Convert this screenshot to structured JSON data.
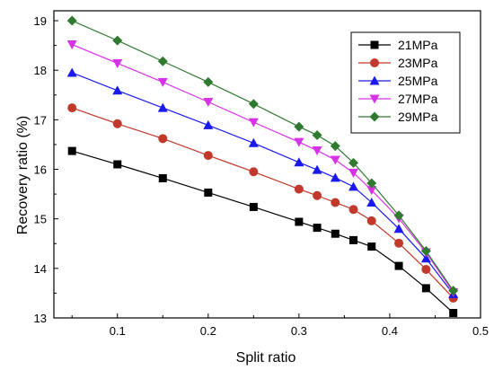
{
  "chart_data": {
    "type": "line",
    "xlabel": "Split ratio",
    "ylabel": "Recovery ratio (%)",
    "xlim": [
      0.03,
      0.5
    ],
    "ylim": [
      13,
      19.2
    ],
    "xticks": [
      0.1,
      0.2,
      0.3,
      0.4,
      0.5
    ],
    "xtick_labels": [
      "0.1",
      "0.2",
      "0.3",
      "0.4",
      "0.5"
    ],
    "yticks": [
      13,
      14,
      15,
      16,
      17,
      18,
      19
    ],
    "ytick_labels": [
      "13",
      "14",
      "15",
      "16",
      "17",
      "18",
      "19"
    ],
    "legend_position": "top-right",
    "grid": false,
    "x": [
      0.05,
      0.1,
      0.15,
      0.2,
      0.25,
      0.3,
      0.32,
      0.34,
      0.36,
      0.38,
      0.41,
      0.44,
      0.47
    ],
    "series": [
      {
        "name": "21MPa",
        "color": "#000000",
        "marker": "square",
        "values": [
          16.37,
          16.1,
          15.82,
          15.53,
          15.24,
          14.94,
          14.82,
          14.7,
          14.57,
          14.44,
          14.05,
          13.6,
          13.1
        ]
      },
      {
        "name": "23MPa",
        "color": "#c0392b",
        "marker": "circle",
        "values": [
          17.24,
          16.92,
          16.62,
          16.28,
          15.95,
          15.6,
          15.47,
          15.33,
          15.19,
          14.96,
          14.51,
          13.98,
          13.4
        ]
      },
      {
        "name": "25MPa",
        "color": "#1a1aee",
        "marker": "triangle-up",
        "values": [
          17.95,
          17.59,
          17.24,
          16.89,
          16.53,
          16.14,
          15.99,
          15.83,
          15.65,
          15.33,
          14.8,
          14.2,
          13.48
        ]
      },
      {
        "name": "27MPa",
        "color": "#d633e8",
        "marker": "triangle-down",
        "values": [
          18.52,
          18.14,
          17.76,
          17.36,
          16.95,
          16.55,
          16.38,
          16.19,
          15.93,
          15.58,
          15.01,
          14.32,
          13.52
        ]
      },
      {
        "name": "29MPa",
        "color": "#2f7a2f",
        "marker": "diamond",
        "values": [
          19.0,
          18.6,
          18.18,
          17.76,
          17.32,
          16.86,
          16.69,
          16.47,
          16.13,
          15.72,
          15.07,
          14.35,
          13.55
        ]
      }
    ]
  }
}
